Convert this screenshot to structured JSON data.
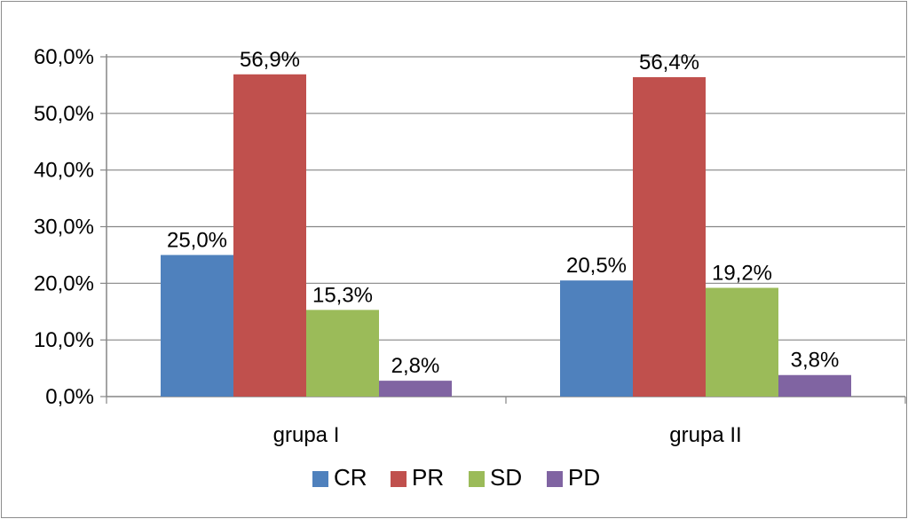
{
  "chart_data": {
    "type": "bar",
    "title": "",
    "xlabel": "",
    "ylabel": "",
    "categories": [
      "grupa I",
      "grupa II"
    ],
    "series": [
      {
        "name": "CR",
        "color": "#4f81bd",
        "values": [
          25.0,
          20.5
        ],
        "labels": [
          "25,0%",
          "20,5%"
        ]
      },
      {
        "name": "PR",
        "color": "#c0504d",
        "values": [
          56.9,
          56.4
        ],
        "labels": [
          "56,9%",
          "56,4%"
        ]
      },
      {
        "name": "SD",
        "color": "#9bbb59",
        "values": [
          15.3,
          19.2
        ],
        "labels": [
          "15,3%",
          "19,2%"
        ]
      },
      {
        "name": "PD",
        "color": "#8064a2",
        "values": [
          2.8,
          3.8
        ],
        "labels": [
          "2,8%",
          "3,8%"
        ]
      }
    ],
    "ylim": [
      0,
      60
    ],
    "yticks": [
      0,
      10,
      20,
      30,
      40,
      50,
      60
    ],
    "ytick_labels": [
      "0,0%",
      "10,0%",
      "20,0%",
      "30,0%",
      "40,0%",
      "50,0%",
      "60,0%"
    ],
    "grid": true,
    "legend": "bottom"
  }
}
